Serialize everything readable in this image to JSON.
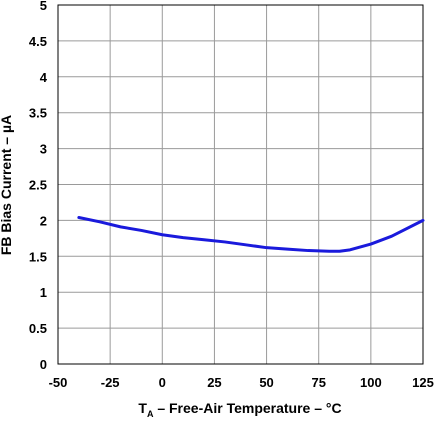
{
  "chart_data": {
    "type": "line",
    "title": "",
    "xlabel_prefix": "T",
    "xlabel_subscript": "A",
    "xlabel_rest": " – Free-Air Temperature – °C",
    "ylabel": "FB Bias Current – µA",
    "xlim": [
      -50,
      125
    ],
    "ylim": [
      0,
      5
    ],
    "xticks": [
      -50,
      -25,
      0,
      25,
      50,
      75,
      100,
      125
    ],
    "xtick_labels": [
      "-50",
      "-25",
      "0",
      "25",
      "50",
      "75",
      "100",
      "125"
    ],
    "yticks": [
      0,
      0.5,
      1,
      1.5,
      2,
      2.5,
      3,
      3.5,
      4,
      4.5,
      5
    ],
    "ytick_labels": [
      "0",
      "0.5",
      "1",
      "1.5",
      "2",
      "2.5",
      "3",
      "3.5",
      "4",
      "4.5",
      "5"
    ],
    "grid": true,
    "series": [
      {
        "color": "#1a1adc",
        "x": [
          -40,
          -30,
          -20,
          -10,
          0,
          10,
          20,
          30,
          40,
          50,
          60,
          70,
          80,
          85,
          90,
          100,
          110,
          125
        ],
        "y": [
          2.04,
          1.98,
          1.91,
          1.86,
          1.8,
          1.76,
          1.73,
          1.7,
          1.66,
          1.62,
          1.6,
          1.58,
          1.57,
          1.57,
          1.59,
          1.67,
          1.78,
          2.0
        ]
      }
    ]
  }
}
